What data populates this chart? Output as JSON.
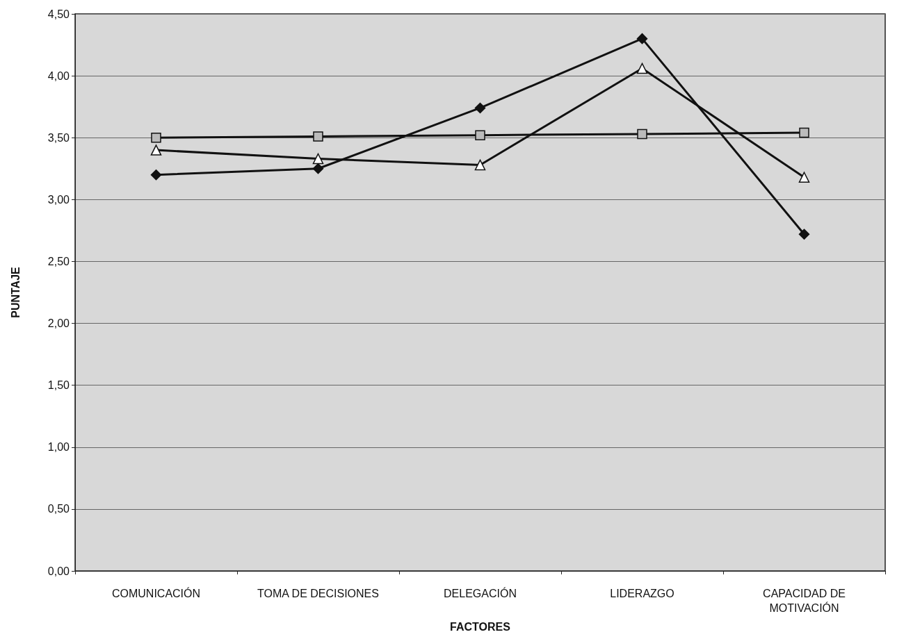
{
  "chart_data": {
    "type": "line",
    "xlabel": "FACTORES",
    "ylabel": "PUNTAJE",
    "categories": [
      "COMUNICACIÓN",
      "TOMA DE DECISIONES",
      "DELEGACIÓN",
      "LIDERAZGO",
      "CAPACIDAD DE\nMOTIVACIÓN"
    ],
    "series": [
      {
        "color": "#111111",
        "marker": "diamond",
        "values": [
          3.2,
          3.25,
          3.74,
          4.3,
          2.72
        ]
      },
      {
        "color": "#111111",
        "marker": "square",
        "values": [
          3.5,
          3.51,
          3.52,
          3.53,
          3.54
        ]
      },
      {
        "color": "#111111",
        "marker": "triangle",
        "values": [
          3.4,
          3.33,
          3.28,
          4.06,
          3.18
        ]
      }
    ],
    "ylim": [
      0,
      4.5
    ],
    "yticks": [
      {
        "value": 0,
        "label": "0,00"
      },
      {
        "value": 0.5,
        "label": "0,50"
      },
      {
        "value": 1,
        "label": "1,00"
      },
      {
        "value": 1.5,
        "label": "1,50"
      },
      {
        "value": 2,
        "label": "2,00"
      },
      {
        "value": 2.5,
        "label": "2,50"
      },
      {
        "value": 3,
        "label": "3,00"
      },
      {
        "value": 3.5,
        "label": "3,50"
      },
      {
        "value": 4,
        "label": "4,00"
      },
      {
        "value": 4.5,
        "label": "4,50"
      }
    ],
    "grid": "y"
  }
}
